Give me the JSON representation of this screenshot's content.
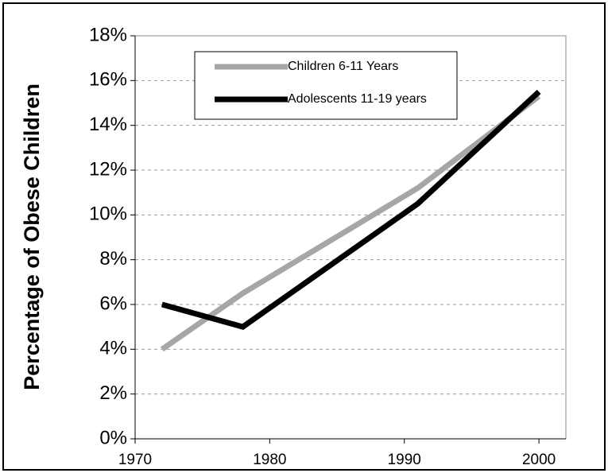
{
  "chart_data": {
    "type": "line",
    "y_label": "Percentage of Obese Children",
    "x": [
      1972,
      1978,
      1991,
      2000
    ],
    "series": [
      {
        "name": "Children 6-11 Years",
        "color": "#a6a6a6",
        "values": [
          4,
          6.5,
          11.2,
          15.3
        ]
      },
      {
        "name": "Adolescents 11-19 years",
        "color": "#000000",
        "values": [
          6,
          5,
          10.5,
          15.5
        ]
      }
    ],
    "xlim": [
      1970,
      2002
    ],
    "xticks": [
      1970,
      1980,
      1990,
      2000
    ],
    "ylim": [
      0,
      18
    ],
    "yticks": [
      {
        "value": 0,
        "label": "0%"
      },
      {
        "value": 2,
        "label": "2%"
      },
      {
        "value": 4,
        "label": "4%"
      },
      {
        "value": 6,
        "label": "6%"
      },
      {
        "value": 8,
        "label": "8%"
      },
      {
        "value": 10,
        "label": "10%"
      },
      {
        "value": 12,
        "label": "12%"
      },
      {
        "value": 14,
        "label": "14%"
      },
      {
        "value": 16,
        "label": "16%"
      },
      {
        "value": 18,
        "label": "18%"
      }
    ],
    "grid": true,
    "legend": "top-left"
  }
}
